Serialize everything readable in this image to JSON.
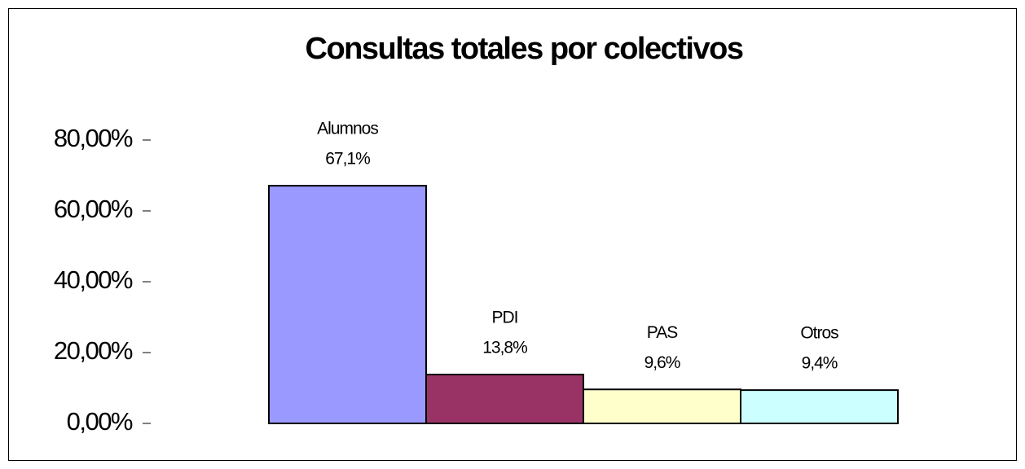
{
  "chart_data": {
    "type": "bar",
    "title": "Consultas totales por colectivos",
    "categories": [
      "Alumnos",
      "PDI",
      "PAS",
      "Otros"
    ],
    "values": [
      67.1,
      13.8,
      9.6,
      9.4
    ],
    "value_labels": [
      "67,1%",
      "13,8%",
      "9,6%",
      "9,4%"
    ],
    "colors": [
      "#9999ff",
      "#993366",
      "#ffffcc",
      "#ccffff"
    ],
    "ylim": [
      0,
      80
    ],
    "yticks": [
      {
        "value": 0,
        "label": "0,00%"
      },
      {
        "value": 20,
        "label": "20,00%"
      },
      {
        "value": 40,
        "label": "40,00%"
      },
      {
        "value": 60,
        "label": "60,00%"
      },
      {
        "value": 80,
        "label": "80,00%"
      }
    ],
    "grid": false
  }
}
